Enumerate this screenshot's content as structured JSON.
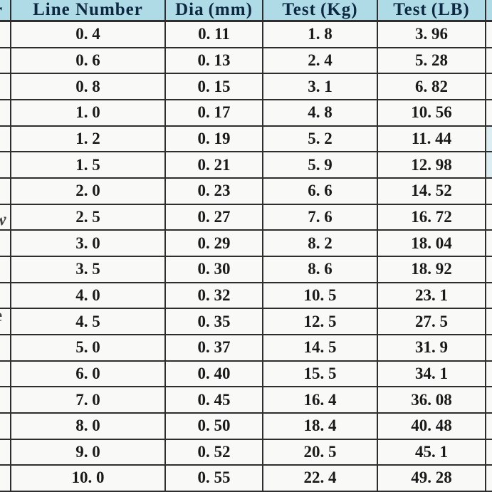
{
  "chart_data": {
    "type": "table",
    "title": "",
    "columns": [
      "Line Number",
      "Dia(mm)",
      "Test(Kg)",
      "Test(LB)"
    ],
    "rows": [
      [
        "0.4",
        "0.11",
        "1.8",
        "3.96"
      ],
      [
        "0.6",
        "0.13",
        "2.4",
        "5.28"
      ],
      [
        "0.8",
        "0.15",
        "3.1",
        "6.82"
      ],
      [
        "1.0",
        "0.17",
        "4.8",
        "10.56"
      ],
      [
        "1.2",
        "0.19",
        "5.2",
        "11.44"
      ],
      [
        "1.5",
        "0.21",
        "5.9",
        "12.98"
      ],
      [
        "2.0",
        "0.23",
        "6.6",
        "14.52"
      ],
      [
        "2.5",
        "0.27",
        "7.6",
        "16.72"
      ],
      [
        "3.0",
        "0.29",
        "8.2",
        "18.04"
      ],
      [
        "3.5",
        "0.30",
        "8.6",
        "18.92"
      ],
      [
        "4.0",
        "0.32",
        "10.5",
        "23.1"
      ],
      [
        "4.5",
        "0.35",
        "12.5",
        "27.5"
      ],
      [
        "5.0",
        "0.37",
        "14.5",
        "31.9"
      ],
      [
        "6.0",
        "0.40",
        "15.5",
        "34.1"
      ],
      [
        "7.0",
        "0.45",
        "16.4",
        "36.08"
      ],
      [
        "8.0",
        "0.50",
        "18.4",
        "40.48"
      ],
      [
        "9.0",
        "0.52",
        "20.5",
        "45.1"
      ],
      [
        "10.0",
        "0.55",
        "22.4",
        "49.28"
      ]
    ]
  },
  "edge_fragments": [
    "r",
    "w",
    "e"
  ],
  "colors": {
    "header_bg": "#afdbe7",
    "header_text": "#0d2840",
    "cell_bg": "#f9f9f7",
    "page_bg": "#f3f3f1",
    "border": "#2e2e2e",
    "text": "#1a1a1a",
    "right_edge_tint": "#ddeef3"
  }
}
